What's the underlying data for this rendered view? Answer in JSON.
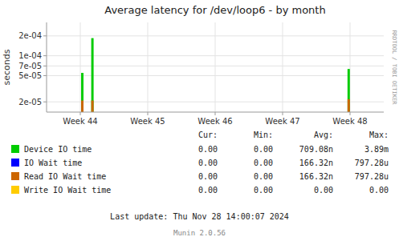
{
  "chart_data": {
    "type": "bar",
    "title": "Average latency for /dev/loop6 - by month",
    "y_label": "seconds",
    "log": "y",
    "grid": true,
    "x": [
      44.03,
      44.18,
      44.03,
      44.18,
      47.98,
      47.98
    ],
    "values": [
      5.5e-05,
      0.000185,
      2.1e-05,
      2.1e-05,
      6.3e-05,
      2.2e-05
    ],
    "colors": [
      "#00cc00",
      "#00cc00",
      "#cc6600",
      "#cc6600",
      "#00cc00",
      "#cc6600"
    ],
    "xlim": [
      43.5,
      48.5
    ],
    "xticks": [
      {
        "value": 44,
        "label": "Week 44"
      },
      {
        "value": 45,
        "label": "Week 45"
      },
      {
        "value": 46,
        "label": "Week 46"
      },
      {
        "value": 47,
        "label": "Week 47"
      },
      {
        "value": 48,
        "label": "Week 48"
      }
    ],
    "ylim": [
      1.4e-05,
      0.00032
    ],
    "yticks": [
      {
        "value": 2e-05,
        "label": "2e-05"
      },
      {
        "value": 5e-05,
        "label": "5e-05"
      },
      {
        "value": 7e-05,
        "label": "7e-05"
      },
      {
        "value": 0.0001,
        "label": "1e-04"
      },
      {
        "value": 0.0002,
        "label": "2e-04"
      }
    ],
    "legend_table": {
      "headers": [
        "Cur:",
        "Min:",
        "Avg:",
        "Max:"
      ],
      "rows": [
        {
          "name": "Device IO time",
          "color": "#00cc00",
          "values": [
            "0.00",
            "0.00",
            "709.08n",
            "3.89m"
          ]
        },
        {
          "name": "IO Wait time",
          "color": "#0000ff",
          "values": [
            "0.00",
            "0.00",
            "166.32n",
            "797.28u"
          ]
        },
        {
          "name": "Read IO Wait time",
          "color": "#cc6600",
          "values": [
            "0.00",
            "0.00",
            "166.32n",
            "797.28u"
          ]
        },
        {
          "name": "Write IO Wait time",
          "color": "#ffcc00",
          "values": [
            "0.00",
            "0.00",
            "0.00",
            "0.00"
          ]
        }
      ]
    },
    "annotations": [
      "Last update: Thu Nov 28 14:00:07 2024",
      "Munin 2.0.56",
      "RRDTOOL / TOBI OETIKER"
    ]
  }
}
